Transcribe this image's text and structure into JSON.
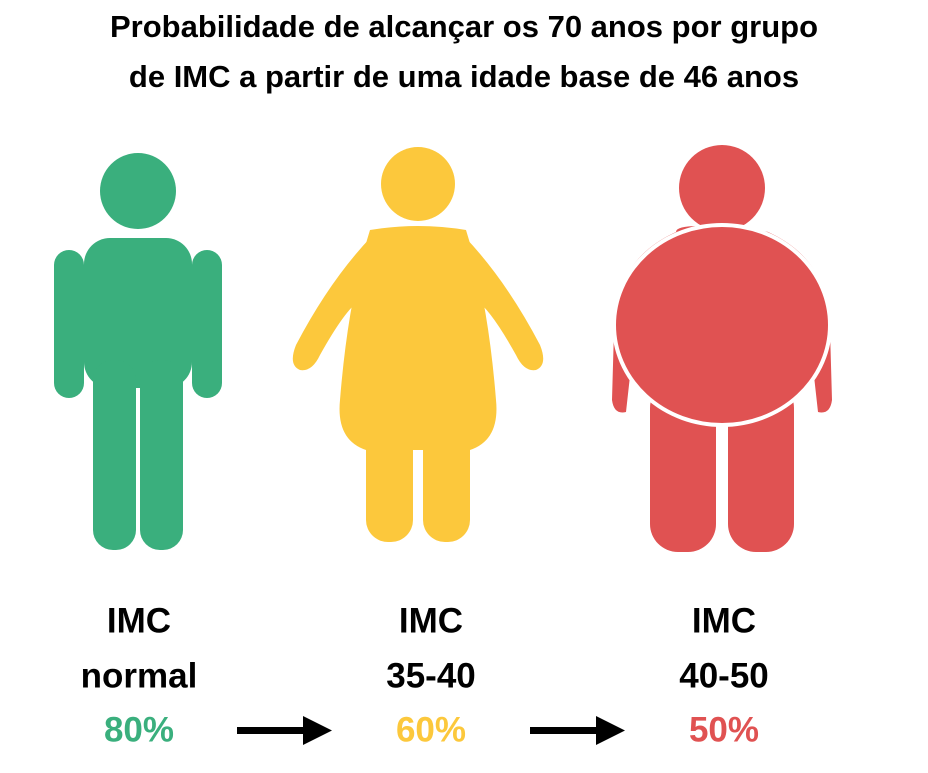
{
  "title_lines": [
    "Probabilidade de alcançar os 70 anos por grupo",
    "de IMC a partir de uma idade base de 46 anos"
  ],
  "groups": [
    {
      "label": "IMC",
      "sublabel": "normal",
      "probability": "80%"
    },
    {
      "label": "IMC",
      "sublabel": "35-40",
      "probability": "60%"
    },
    {
      "label": "IMC",
      "sublabel": "40-50",
      "probability": "50%"
    }
  ]
}
